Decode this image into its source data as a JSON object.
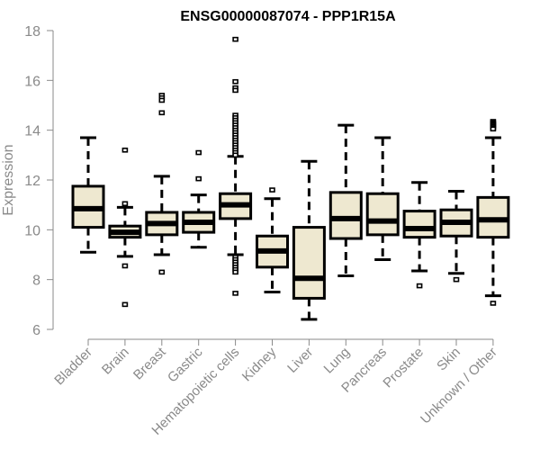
{
  "chart_data": {
    "type": "boxplot",
    "title": "ENSG00000087074 - PPP1R15A",
    "xlabel": "",
    "ylabel": "Expression",
    "ylim": [
      6,
      18
    ],
    "yticks": [
      "6",
      "8",
      "10",
      "12",
      "14",
      "16",
      "18"
    ],
    "grid": false,
    "box_color": "#EEE8D0",
    "categories": [
      "Bladder",
      "Brain",
      "Breast",
      "Gastric",
      "Hematopoietic cells",
      "Kidney",
      "Liver",
      "Lung",
      "Pancreas",
      "Prostate",
      "Skin",
      "Unknown / Other"
    ],
    "boxes": [
      {
        "name": "Bladder",
        "whisker_low": 9.1,
        "q1": 10.1,
        "median": 10.85,
        "q3": 11.75,
        "whisker_high": 13.7,
        "outliers": []
      },
      {
        "name": "Brain",
        "whisker_low": 8.93,
        "q1": 9.7,
        "median": 9.9,
        "q3": 10.15,
        "whisker_high": 10.9,
        "outliers": [
          13.2,
          11.05,
          8.55,
          7.0
        ]
      },
      {
        "name": "Breast",
        "whisker_low": 9.0,
        "q1": 9.8,
        "median": 10.25,
        "q3": 10.7,
        "whisker_high": 12.15,
        "outliers": [
          15.4,
          15.3,
          15.2,
          14.7,
          8.3
        ]
      },
      {
        "name": "Gastric",
        "whisker_low": 9.3,
        "q1": 9.9,
        "median": 10.3,
        "q3": 10.7,
        "whisker_high": 11.4,
        "outliers": [
          13.1,
          12.05
        ]
      },
      {
        "name": "Hematopoietic cells",
        "whisker_low": 9.0,
        "q1": 10.45,
        "median": 11.0,
        "q3": 11.45,
        "whisker_high": 12.95,
        "outliers": [
          17.65,
          15.95,
          15.7,
          15.6,
          14.6,
          14.5,
          14.4,
          14.3,
          14.2,
          14.1,
          14.0,
          13.9,
          13.8,
          13.7,
          13.6,
          13.5,
          13.4,
          13.3,
          13.2,
          13.1,
          13.0,
          8.9,
          8.8,
          8.7,
          8.6,
          8.5,
          8.4,
          8.3,
          7.45
        ]
      },
      {
        "name": "Kidney",
        "whisker_low": 7.5,
        "q1": 8.5,
        "median": 9.15,
        "q3": 9.75,
        "whisker_high": 11.25,
        "outliers": [
          11.6
        ]
      },
      {
        "name": "Liver",
        "whisker_low": 6.4,
        "q1": 7.25,
        "median": 8.05,
        "q3": 10.1,
        "whisker_high": 12.75,
        "outliers": []
      },
      {
        "name": "Lung",
        "whisker_low": 8.15,
        "q1": 9.65,
        "median": 10.45,
        "q3": 11.5,
        "whisker_high": 14.2,
        "outliers": []
      },
      {
        "name": "Pancreas",
        "whisker_low": 8.8,
        "q1": 9.8,
        "median": 10.35,
        "q3": 11.45,
        "whisker_high": 13.7,
        "outliers": []
      },
      {
        "name": "Prostate",
        "whisker_low": 8.35,
        "q1": 9.7,
        "median": 10.05,
        "q3": 10.75,
        "whisker_high": 11.9,
        "outliers": [
          7.75
        ]
      },
      {
        "name": "Skin",
        "whisker_low": 8.25,
        "q1": 9.75,
        "median": 10.3,
        "q3": 10.8,
        "whisker_high": 11.55,
        "outliers": [
          8.0
        ]
      },
      {
        "name": "Unknown / Other",
        "whisker_low": 7.35,
        "q1": 9.7,
        "median": 10.4,
        "q3": 11.3,
        "whisker_high": 13.7,
        "outliers": [
          14.35,
          14.3,
          14.25,
          14.2,
          14.15,
          14.1,
          14.05,
          7.05
        ]
      }
    ]
  }
}
